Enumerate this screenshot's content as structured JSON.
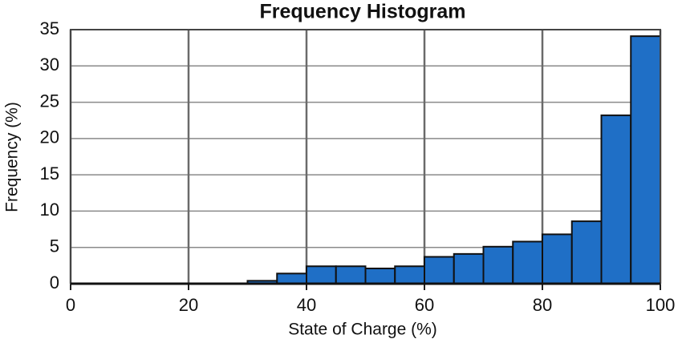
{
  "chart_data": {
    "type": "histogram",
    "title": "Frequency Histogram",
    "x_label": "State of Charge (%)",
    "y_label": "Frequency (%)",
    "bins": [
      0,
      5,
      10,
      15,
      20,
      25,
      30,
      35,
      40,
      45,
      50,
      55,
      60,
      65,
      70,
      75,
      80,
      85,
      90,
      95,
      100
    ],
    "values": [
      0,
      0,
      0,
      0,
      0,
      0,
      0.4,
      1.4,
      2.4,
      2.4,
      2.1,
      2.4,
      3.7,
      4.1,
      5.1,
      5.8,
      6.8,
      8.6,
      23.2,
      34.1
    ],
    "color": "#1f6fc6",
    "xlim": [
      0,
      100
    ],
    "xticks": [
      0,
      20,
      40,
      60,
      80,
      100
    ],
    "ylim": [
      0,
      35
    ],
    "yticks": [
      0,
      5,
      10,
      15,
      20,
      25,
      30,
      35
    ],
    "grid": true
  }
}
